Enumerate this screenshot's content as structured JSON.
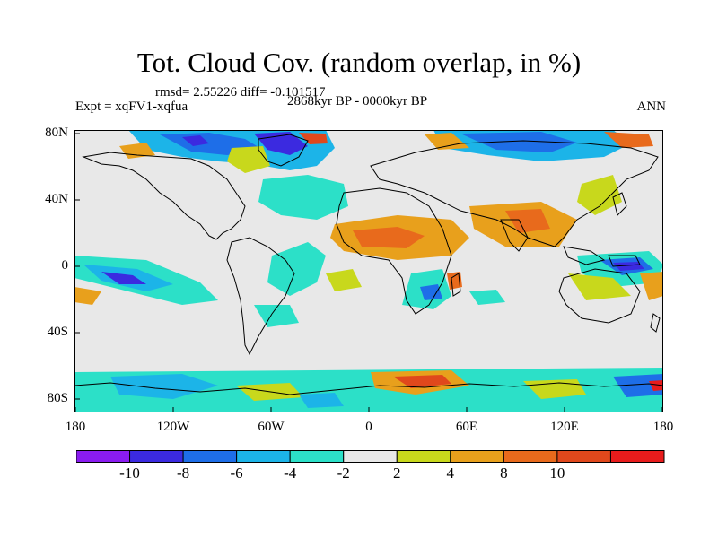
{
  "title": "Tot. Cloud Cov. (random overlap, in %)",
  "stats": "rmsd= 2.55226 diff= -0.101517",
  "experiment": "Expt = xqFV1-xqfua",
  "period": "2868kyr BP - 0000kyr BP",
  "season": "ANN",
  "map": {
    "lat_labels": [
      "80N",
      "40N",
      "0",
      "40S",
      "80S"
    ],
    "lon_labels": [
      "180",
      "120W",
      "60W",
      "0",
      "60E",
      "120E",
      "180"
    ],
    "background_color": "#e8e8e8"
  },
  "colorbar": {
    "colors": [
      "#8a1cf0",
      "#3b2ae0",
      "#1e6ee8",
      "#1cb4e8",
      "#2ce0c8",
      "#e8e8e8",
      "#c8d81c",
      "#e8a01c",
      "#e86a1c",
      "#e0481c",
      "#e81c1c"
    ],
    "labels": [
      "-10",
      "-8",
      "-6",
      "-4",
      "-2",
      "2",
      "4",
      "8",
      "10"
    ]
  }
}
